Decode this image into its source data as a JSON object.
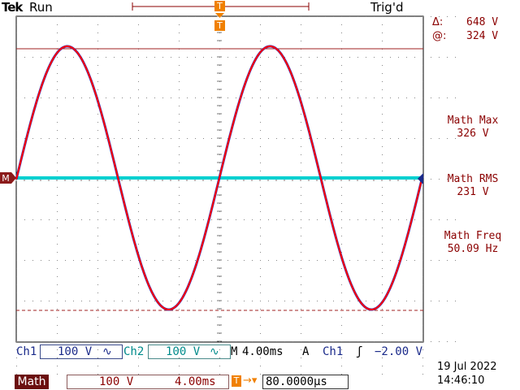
{
  "header": {
    "brand": "Tek",
    "acquisition_state": "Run",
    "trigger_status": "Trig'd"
  },
  "cursor": {
    "delta_symbol": "Δ:",
    "delta_value": "648 V",
    "at_symbol": "@:",
    "at_value": "324 V"
  },
  "measurements": [
    {
      "label": "Math Max",
      "value": "326 V"
    },
    {
      "label": "Math RMS",
      "value": "231 V"
    },
    {
      "label": "Math Freq",
      "value": "50.09 Hz"
    }
  ],
  "markers": {
    "math_ground": "M",
    "trigger_position": "T"
  },
  "channels": {
    "ch1_label": "Ch1",
    "ch1_scale": "100 V",
    "ch1_coupling": "∿",
    "ch2_label": "Ch2",
    "ch2_scale": "100 V",
    "ch2_coupling": "∿",
    "timebase_prefix": "M",
    "timebase": "4.00ms",
    "trigger_mode": "A",
    "trigger_source": "Ch1",
    "trigger_slope": "ʃ",
    "trigger_level": "−2.00 V"
  },
  "math": {
    "label": "Math",
    "scale": "100 V",
    "time": "4.00ms",
    "horizontal_position": "80.0000µs"
  },
  "datetime": {
    "date": "19 Jul  2022",
    "time": "14:46:10"
  },
  "colors": {
    "math_waveform": "#ff0000",
    "ch2_trace": "#00d0d0",
    "ch1_ref": "#3030c0",
    "trigger_orange": "#f08000",
    "readout_red": "#8b0000"
  },
  "waveform": {
    "frequency_hz": 50.09,
    "peak_v": 324,
    "volts_per_div": 100,
    "time_per_div_ms": 4.0
  }
}
